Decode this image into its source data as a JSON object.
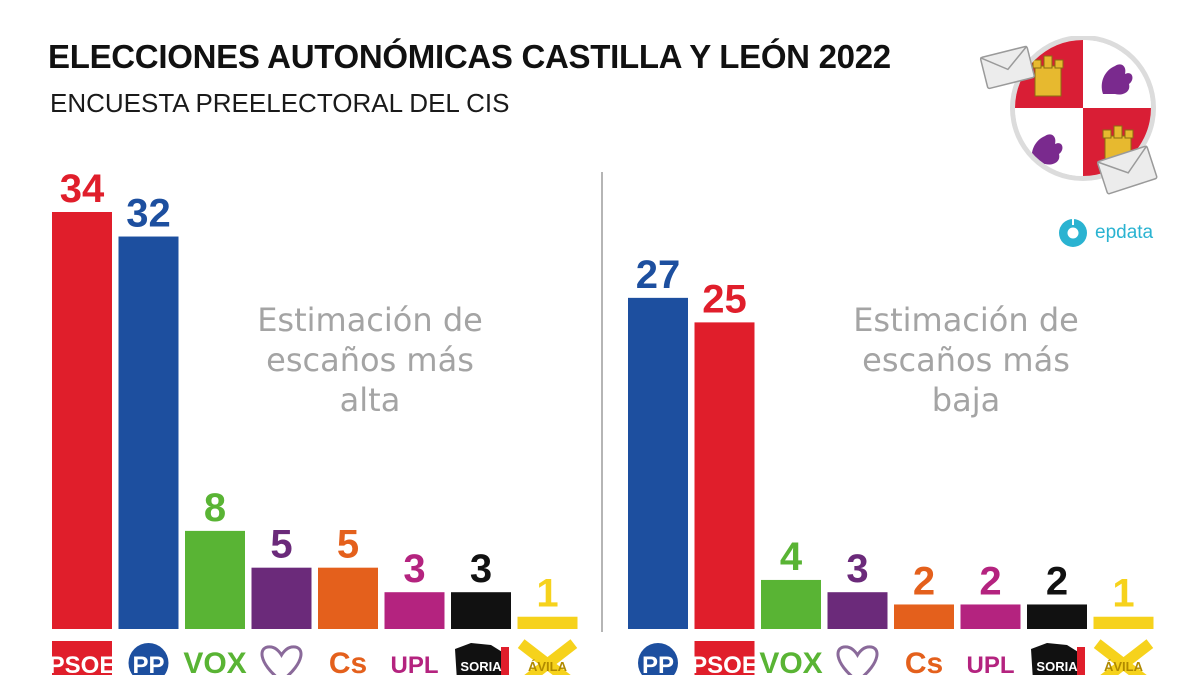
{
  "header": {
    "title": "ELECCIONES AUTONÓMICAS CASTILLA Y LEÓN 2022",
    "subtitle": "ENCUESTA PREELECTORAL DEL CIS"
  },
  "brand": {
    "name": "epdata",
    "color": "#2ab3d1"
  },
  "emblem_icon": "castilla-y-leon-coat-of-arms-icon",
  "chart_data": [
    {
      "type": "bar",
      "title": "Estimación de escaños más alta",
      "ylim": [
        0,
        34
      ],
      "categories": [
        "PSOE",
        "PP",
        "VOX",
        "Podemos",
        "Cs",
        "UPL",
        "Soria ¡Ya!",
        "Por Ávila"
      ],
      "labels": [
        "PSOE",
        "PP",
        "VOX",
        "",
        "Cs",
        "UPL",
        "SORIA",
        "ÁVILA"
      ],
      "values": [
        34,
        32,
        8,
        5,
        5,
        3,
        3,
        1
      ],
      "colors": [
        "#e01e2b",
        "#1d4f9f",
        "#59b434",
        "#6b2a7a",
        "#e4601c",
        "#b4237f",
        "#111111",
        "#f6d21c"
      ]
    },
    {
      "type": "bar",
      "title": "Estimación de escaños más baja",
      "ylim": [
        0,
        34
      ],
      "categories": [
        "PP",
        "PSOE",
        "VOX",
        "Podemos",
        "Cs",
        "UPL",
        "Soria ¡Ya!",
        "Por Ávila"
      ],
      "labels": [
        "PP",
        "PSOE",
        "VOX",
        "",
        "Cs",
        "UPL",
        "SORIA",
        "ÁVILA"
      ],
      "values": [
        27,
        25,
        4,
        3,
        2,
        2,
        2,
        1
      ],
      "colors": [
        "#1d4f9f",
        "#e01e2b",
        "#59b434",
        "#6b2a7a",
        "#e4601c",
        "#b4237f",
        "#111111",
        "#f6d21c"
      ]
    }
  ]
}
